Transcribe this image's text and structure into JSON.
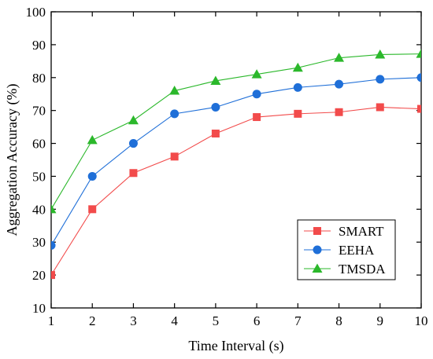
{
  "chart_data": {
    "type": "line",
    "title": "",
    "xlabel": "Time Interval (s)",
    "ylabel": "Aggregation Accuracy (%)",
    "x": [
      1,
      2,
      3,
      4,
      5,
      6,
      7,
      8,
      9,
      10
    ],
    "xlim": [
      1,
      10
    ],
    "ylim": [
      10,
      100
    ],
    "xticks": [
      1,
      2,
      3,
      4,
      5,
      6,
      7,
      8,
      9,
      10
    ],
    "yticks": [
      10,
      20,
      30,
      40,
      50,
      60,
      70,
      80,
      90,
      100
    ],
    "grid": false,
    "legend_position": "bottom-right",
    "series": [
      {
        "name": "SMART",
        "color": "#f24b4b",
        "marker": "square",
        "values": [
          20,
          40,
          51,
          56,
          63,
          68,
          69,
          69.5,
          71,
          70.5
        ]
      },
      {
        "name": "EEHA",
        "color": "#1f6fd8",
        "marker": "circle",
        "values": [
          29,
          50,
          60,
          69,
          71,
          75,
          77,
          78,
          79.5,
          80
        ]
      },
      {
        "name": "TMSDA",
        "color": "#2bb82b",
        "marker": "triangle",
        "values": [
          40,
          61,
          67,
          76,
          79,
          81,
          83,
          86,
          87,
          87.2
        ]
      }
    ]
  }
}
